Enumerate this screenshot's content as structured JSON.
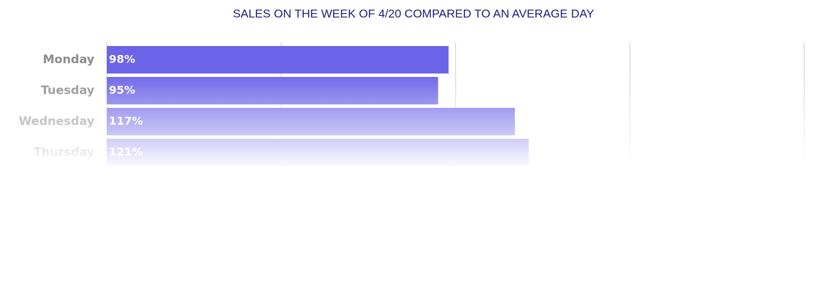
{
  "chart_data": {
    "type": "bar",
    "orientation": "horizontal",
    "title": "SALES ON THE WEEK OF 4/20 COMPARED TO AN AVERAGE DAY",
    "categories": [
      "Monday",
      "Tuesday",
      "Wednesday",
      "Thursday"
    ],
    "values": [
      98,
      95,
      117,
      121
    ],
    "value_labels": [
      "98%",
      "95%",
      "117%",
      "121%"
    ],
    "color": "#6b63e8",
    "xlim": [
      0,
      200
    ],
    "xticks": [
      0,
      50,
      100,
      150,
      200
    ],
    "grid": true
  }
}
